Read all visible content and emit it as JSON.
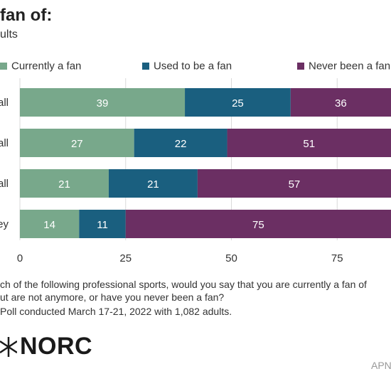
{
  "header": {
    "title": "fan of:",
    "subtitle": "ults"
  },
  "legend": [
    {
      "label": "Currently a fan",
      "color": "#78a88b"
    },
    {
      "label": "Used to be a fan",
      "color": "#1a5f7f"
    },
    {
      "label": "Never been a fan",
      "color": "#6b2f63"
    }
  ],
  "chart_data": {
    "type": "bar",
    "orientation": "horizontal",
    "stacked": true,
    "categories": [
      "all",
      "all",
      "all",
      "ey"
    ],
    "series": [
      {
        "name": "Currently a fan",
        "values": [
          39,
          27,
          21,
          14
        ]
      },
      {
        "name": "Used to be a fan",
        "values": [
          25,
          22,
          21,
          11
        ]
      },
      {
        "name": "Never been a fan",
        "values": [
          36,
          51,
          57,
          75
        ]
      }
    ],
    "xlim": [
      0,
      100
    ],
    "xticks": [
      0,
      25,
      50,
      75
    ],
    "grid": true,
    "legend_position": "top"
  },
  "notes": {
    "line1": "ch of the following professional sports, would you say that you are currently a fan of",
    "line2": "ut are not anymore, or have you never been a fan?",
    "line3": " Poll conducted March 17-21, 2022 with 1,082 adults."
  },
  "branding": {
    "logo_text": "NORC",
    "credit": "APN"
  }
}
